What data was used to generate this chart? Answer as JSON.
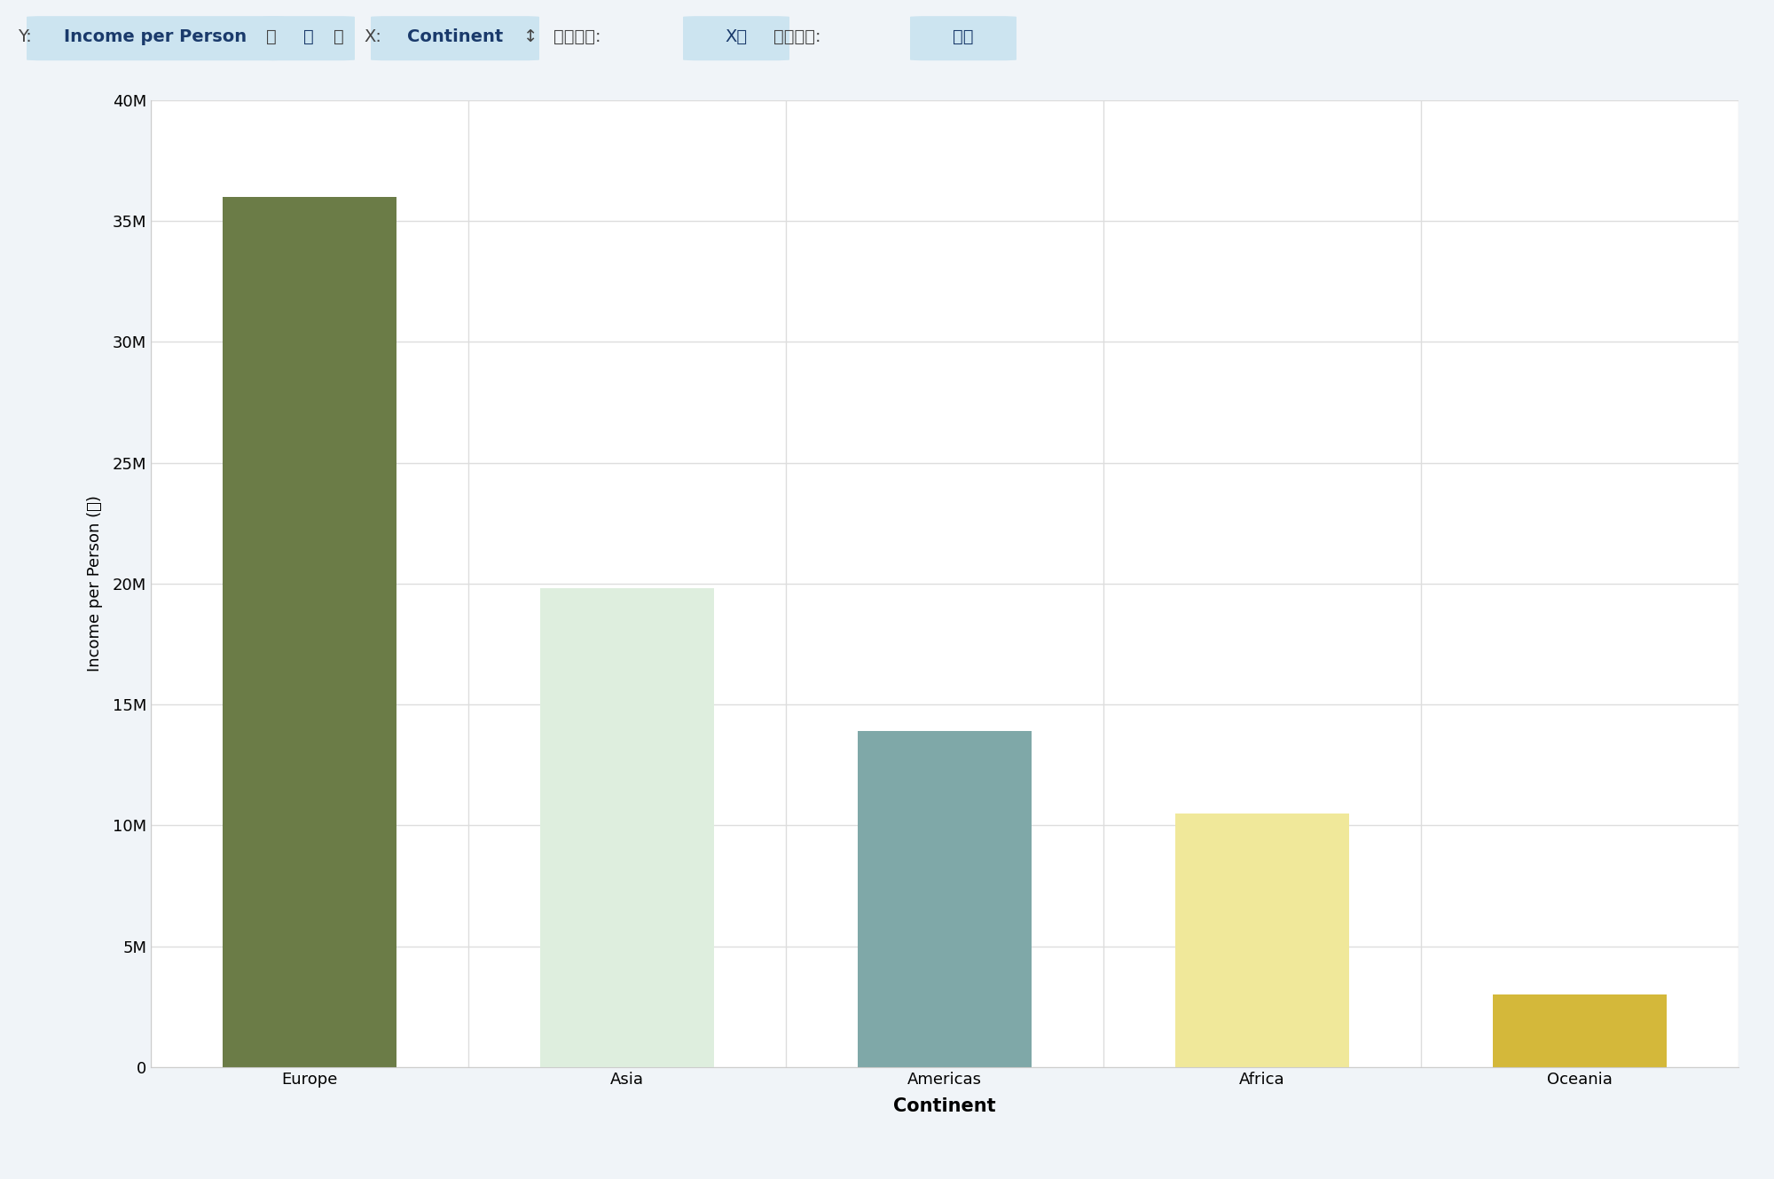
{
  "categories": [
    "Europe",
    "Asia",
    "Americas",
    "Africa",
    "Oceania"
  ],
  "values": [
    36000000,
    19800000,
    13900000,
    10500000,
    3000000
  ],
  "bar_colors": [
    "#6b7c47",
    "#deeede",
    "#7fa8a8",
    "#f0e89a",
    "#d4b83a"
  ],
  "xlabel": "Continent",
  "ylabel": "Income per Person (합)",
  "ylim": [
    0,
    40000000
  ],
  "yticks": [
    0,
    5000000,
    10000000,
    15000000,
    20000000,
    25000000,
    30000000,
    35000000,
    40000000
  ],
  "ytick_labels": [
    "0",
    "5M",
    "10M",
    "15M",
    "20M",
    "25M",
    "30M",
    "35M",
    "40M"
  ],
  "background_color": "#ffffff",
  "grid_color": "#dddddd",
  "bar_width": 0.55,
  "header_bg": "#e8f4f8",
  "header_highlight_bg": "#d0e8f5",
  "header_text_color": "#333333",
  "header_highlight_text": "#1a3a6b",
  "fig_bg": "#f5f5f5"
}
